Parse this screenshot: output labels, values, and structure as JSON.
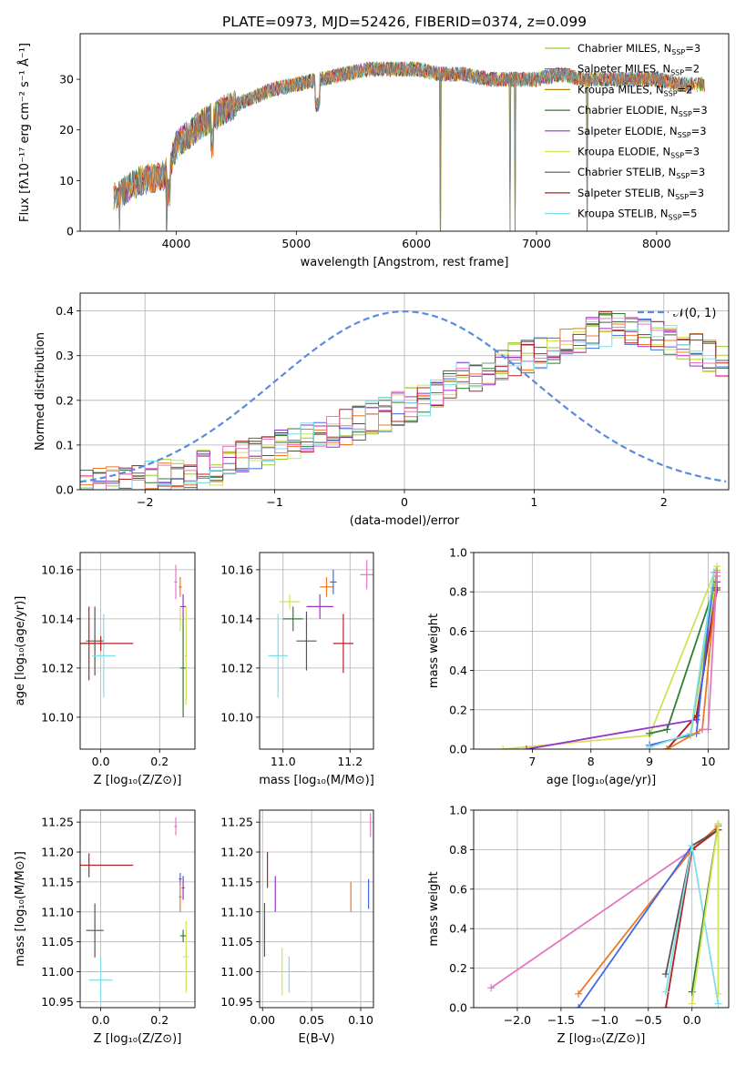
{
  "title": "PLATE=0973, MJD=52426, FIBERID=0374, z=0.099",
  "colors": {
    "Chabrier MILES": "#9acd32",
    "Salpeter MILES": "#4169e1",
    "Kroupa MILES": "#b8860b",
    "Chabrier ELODIE": "#2e7d32",
    "Salpeter ELODIE": "#9932cc",
    "Kroupa ELODIE": "#d4e157",
    "Chabrier STELIB": "#555555",
    "Salpeter STELIB": "#b22222",
    "Kroupa STELIB": "#7fdfe8",
    "extra_orange": "#ee7722",
    "extra_pink": "#e377c2",
    "gaussian": "#5b8bdb"
  },
  "chart_data": [
    {
      "id": "spectrum",
      "type": "line",
      "xlabel": "wavelength [Angstrom, rest frame]",
      "ylabel": "Flux [fλ10⁻¹⁷ erg cm⁻² s⁻¹ Å⁻¹]",
      "xlim": [
        3200,
        8600
      ],
      "ylim": [
        0,
        39
      ],
      "xticks": [
        "4000",
        "5000",
        "6000",
        "7000",
        "8000"
      ],
      "xtick_values": [
        4000,
        5000,
        6000,
        7000,
        8000
      ],
      "yticks": [
        "0",
        "10",
        "20",
        "30"
      ],
      "ytick_values": [
        0,
        10,
        20,
        30
      ],
      "legend_position": "top-right",
      "legend": [
        {
          "label": "Chabrier MILES, N",
          "sub": "SSP",
          "tail": "=3",
          "color": "#9acd32"
        },
        {
          "label": "Salpeter MILES, N",
          "sub": "SSP",
          "tail": "=2",
          "color": "#4169e1"
        },
        {
          "label": "Kroupa MILES, N",
          "sub": "SSP",
          "tail": "=2",
          "color": "#b8860b"
        },
        {
          "label": "Chabrier ELODIE, N",
          "sub": "SSP",
          "tail": "=3",
          "color": "#2e7d32"
        },
        {
          "label": "Salpeter ELODIE, N",
          "sub": "SSP",
          "tail": "=3",
          "color": "#9932cc"
        },
        {
          "label": "Kroupa ELODIE, N",
          "sub": "SSP",
          "tail": "=3",
          "color": "#d4e157"
        },
        {
          "label": "Chabrier STELIB, N",
          "sub": "SSP",
          "tail": "=3",
          "color": "#555555"
        },
        {
          "label": "Salpeter STELIB, N",
          "sub": "SSP",
          "tail": "=3",
          "color": "#b22222"
        },
        {
          "label": "Kroupa STELIB, N",
          "sub": "SSP",
          "tail": "=5",
          "color": "#7fdfe8"
        }
      ],
      "continuum": {
        "x": [
          3500,
          3700,
          3900,
          3950,
          4000,
          4200,
          4400,
          4600,
          4800,
          5000,
          5200,
          5400,
          5600,
          5800,
          6000,
          6200,
          6400,
          6600,
          6800,
          7000,
          7200,
          7400,
          7600,
          7800,
          8000,
          8200,
          8400
        ],
        "y": [
          7,
          10,
          11,
          13,
          17,
          21,
          24,
          26,
          28,
          29,
          30,
          31,
          32,
          32,
          32,
          31,
          31,
          30,
          30,
          30,
          31,
          30,
          30,
          30,
          30,
          29,
          29
        ]
      },
      "dropouts": [
        3530,
        3920,
        6200,
        6780,
        6820,
        7420
      ]
    },
    {
      "id": "residual-hist",
      "type": "line",
      "xlabel": "(data-model)/error",
      "ylabel": "Normed distribution",
      "xlim": [
        -2.5,
        2.5
      ],
      "ylim": [
        0,
        0.44
      ],
      "xticks": [
        "−2",
        "−1",
        "0",
        "1",
        "2"
      ],
      "xtick_values": [
        -2,
        -1,
        0,
        1,
        2
      ],
      "yticks": [
        "0.0",
        "0.1",
        "0.2",
        "0.3",
        "0.4"
      ],
      "ytick_values": [
        0,
        0.1,
        0.2,
        0.3,
        0.4
      ],
      "legend_label": "𝒩(0, 1)",
      "series_shape": {
        "bin_edges_start": -2.5,
        "bin_width": 0.1,
        "note_values": [
          0.01,
          0.01,
          0.015,
          0.02,
          0.02,
          0.025,
          0.03,
          0.03,
          0.04,
          0.05,
          0.05,
          0.06,
          0.07,
          0.08,
          0.08,
          0.1,
          0.1,
          0.11,
          0.12,
          0.13,
          0.14,
          0.15,
          0.16,
          0.17,
          0.18,
          0.19,
          0.2,
          0.22,
          0.23,
          0.25,
          0.26,
          0.27,
          0.28,
          0.29,
          0.3,
          0.31,
          0.32,
          0.33,
          0.34,
          0.35,
          0.36,
          0.36,
          0.36,
          0.35,
          0.34,
          0.33,
          0.32,
          0.31,
          0.3,
          0.29
        ]
      }
    },
    {
      "id": "age-vs-Z",
      "type": "scatter",
      "xlabel": "Z [log₁₀(Z/Z⊙)]",
      "ylabel": "age  [log₁₀(age/yr)]",
      "xlim": [
        -0.07,
        0.32
      ],
      "ylim": [
        10.087,
        10.167
      ],
      "xticks": [
        "0.0",
        "0.2"
      ],
      "xtick_values": [
        0,
        0.2
      ],
      "yticks": [
        "10.10",
        "10.12",
        "10.14",
        "10.16"
      ],
      "ytick_values": [
        10.1,
        10.12,
        10.14,
        10.16
      ],
      "points": [
        {
          "x": -0.04,
          "y": 10.13,
          "xerr": 0.02,
          "yerr": 0.015,
          "color": "#b22222"
        },
        {
          "x": -0.02,
          "y": 10.131,
          "xerr": 0.03,
          "yerr": 0.014,
          "color": "#555555"
        },
        {
          "x": 0.01,
          "y": 10.125,
          "xerr": 0.04,
          "yerr": 0.017,
          "color": "#7fdfe8"
        },
        {
          "x": 0.0,
          "y": 10.13,
          "xerr": 0.11,
          "yerr": 0.003,
          "color": "#b22222"
        },
        {
          "x": 0.255,
          "y": 10.155,
          "xerr": 0.005,
          "yerr": 0.007,
          "color": "#e377c2"
        },
        {
          "x": 0.27,
          "y": 10.153,
          "xerr": 0.005,
          "yerr": 0.004,
          "color": "#ee7722"
        },
        {
          "x": 0.28,
          "y": 10.145,
          "xerr": 0.01,
          "yerr": 0.005,
          "color": "#9932cc"
        },
        {
          "x": 0.27,
          "y": 10.14,
          "xerr": 0.01,
          "yerr": 0.005,
          "color": "#d4e157"
        },
        {
          "x": 0.28,
          "y": 10.12,
          "xerr": 0.01,
          "yerr": 0.02,
          "color": "#2e7d32"
        },
        {
          "x": 0.29,
          "y": 10.125,
          "xerr": 0.005,
          "yerr": 0.02,
          "color": "#d4e157"
        }
      ]
    },
    {
      "id": "age-vs-mass",
      "type": "scatter",
      "xlabel": "mass [log₁₀(M/M⊙)]",
      "ylabel": "",
      "xlim": [
        10.93,
        11.27
      ],
      "ylim": [
        10.087,
        10.167
      ],
      "xticks": [
        "11.0",
        "11.2"
      ],
      "xtick_values": [
        11.0,
        11.2
      ],
      "yticks": [
        "10.10",
        "10.12",
        "10.14",
        "10.16"
      ],
      "ytick_values": [
        10.1,
        10.12,
        10.14,
        10.16
      ],
      "points": [
        {
          "x": 10.985,
          "y": 10.125,
          "xerr": 0.03,
          "yerr": 0.017,
          "color": "#7fdfe8"
        },
        {
          "x": 11.02,
          "y": 10.147,
          "xerr": 0.03,
          "yerr": 0.003,
          "color": "#d4e157"
        },
        {
          "x": 11.03,
          "y": 10.14,
          "xerr": 0.03,
          "yerr": 0.005,
          "color": "#2e7d32"
        },
        {
          "x": 11.07,
          "y": 10.131,
          "xerr": 0.03,
          "yerr": 0.012,
          "color": "#555555"
        },
        {
          "x": 11.11,
          "y": 10.145,
          "xerr": 0.04,
          "yerr": 0.005,
          "color": "#9932cc"
        },
        {
          "x": 11.13,
          "y": 10.153,
          "xerr": 0.02,
          "yerr": 0.004,
          "color": "#ee7722"
        },
        {
          "x": 11.15,
          "y": 10.155,
          "xerr": 0.01,
          "yerr": 0.005,
          "color": "#4169e1"
        },
        {
          "x": 11.18,
          "y": 10.13,
          "xerr": 0.03,
          "yerr": 0.012,
          "color": "#b22222"
        },
        {
          "x": 11.25,
          "y": 10.158,
          "xerr": 0.02,
          "yerr": 0.006,
          "color": "#e377c2"
        }
      ]
    },
    {
      "id": "mass-weight-vs-age",
      "type": "line",
      "xlabel": "age  [log₁₀(age/yr)]",
      "ylabel": "mass weight",
      "xlim": [
        6.0,
        10.35
      ],
      "ylim": [
        0,
        1.0
      ],
      "xticks": [
        "7",
        "8",
        "9",
        "10"
      ],
      "xtick_values": [
        7,
        8,
        9,
        10
      ],
      "yticks": [
        "0.0",
        "0.2",
        "0.4",
        "0.6",
        "0.8",
        "1.0"
      ],
      "ytick_values": [
        0,
        0.2,
        0.4,
        0.6,
        0.8,
        1.0
      ],
      "series": [
        {
          "color": "#d4e157",
          "x": [
            6.5,
            9.0,
            10.15
          ],
          "y": [
            0.0,
            0.07,
            0.93
          ]
        },
        {
          "color": "#2e7d32",
          "x": [
            9.0,
            9.3,
            10.1
          ],
          "y": [
            0.08,
            0.1,
            0.82
          ]
        },
        {
          "color": "#9acd32",
          "x": [
            9.0,
            9.7,
            10.15
          ],
          "y": [
            0.02,
            0.07,
            0.91
          ]
        },
        {
          "color": "#9932cc",
          "x": [
            6.9,
            9.8,
            10.15
          ],
          "y": [
            0.0,
            0.15,
            0.85
          ]
        },
        {
          "color": "#555555",
          "x": [
            9.3,
            9.8,
            10.15
          ],
          "y": [
            0.0,
            0.17,
            0.82
          ]
        },
        {
          "color": "#b22222",
          "x": [
            9.3,
            9.8,
            10.15
          ],
          "y": [
            0.0,
            0.17,
            0.81
          ]
        },
        {
          "color": "#4169e1",
          "x": [
            9.0,
            9.8,
            10.1
          ],
          "y": [
            0.02,
            0.08,
            0.9
          ]
        },
        {
          "color": "#ee7722",
          "x": [
            9.3,
            9.9,
            10.15
          ],
          "y": [
            0.0,
            0.1,
            0.88
          ]
        },
        {
          "color": "#7fdfe8",
          "x": [
            9.0,
            9.7,
            10.1
          ],
          "y": [
            0.01,
            0.08,
            0.9
          ]
        },
        {
          "color": "#e377c2",
          "x": [
            9.9,
            10.0,
            10.15
          ],
          "y": [
            0.1,
            0.1,
            0.9
          ]
        }
      ]
    },
    {
      "id": "mass-vs-Z",
      "type": "scatter",
      "xlabel": "Z [log₁₀(Z/Z⊙)]",
      "ylabel": "mass [log₁₀(M/M⊙)]",
      "xlim": [
        -0.07,
        0.32
      ],
      "ylim": [
        10.94,
        11.27
      ],
      "xticks": [
        "0.0",
        "0.2"
      ],
      "xtick_values": [
        0,
        0.2
      ],
      "yticks": [
        "10.95",
        "11.00",
        "11.05",
        "11.10",
        "11.15",
        "11.20",
        "11.25"
      ],
      "ytick_values": [
        10.95,
        11.0,
        11.05,
        11.1,
        11.15,
        11.2,
        11.25
      ],
      "points": [
        {
          "x": -0.04,
          "y": 11.178,
          "xerr": 0.15,
          "yerr": 0.02,
          "color": "#b22222"
        },
        {
          "x": -0.02,
          "y": 11.069,
          "xerr": 0.03,
          "yerr": 0.045,
          "color": "#555555"
        },
        {
          "x": 0.0,
          "y": 10.986,
          "xerr": 0.04,
          "yerr": 0.038,
          "color": "#7fdfe8"
        },
        {
          "x": 0.255,
          "y": 11.243,
          "xerr": 0.005,
          "yerr": 0.015,
          "color": "#e377c2"
        },
        {
          "x": 0.27,
          "y": 11.155,
          "xerr": 0.005,
          "yerr": 0.01,
          "color": "#4169e1"
        },
        {
          "x": 0.27,
          "y": 11.125,
          "xerr": 0.005,
          "yerr": 0.025,
          "color": "#ee7722"
        },
        {
          "x": 0.28,
          "y": 11.14,
          "xerr": 0.005,
          "yerr": 0.02,
          "color": "#9932cc"
        },
        {
          "x": 0.28,
          "y": 11.06,
          "xerr": 0.01,
          "yerr": 0.01,
          "color": "#2e7d32"
        },
        {
          "x": 0.29,
          "y": 11.025,
          "xerr": 0.01,
          "yerr": 0.06,
          "color": "#d4e157"
        }
      ]
    },
    {
      "id": "mass-vs-ebv",
      "type": "scatter",
      "xlabel": "E(B-V)",
      "ylabel": "",
      "xlim": [
        -0.003,
        0.113
      ],
      "ylim": [
        10.94,
        11.27
      ],
      "xticks": [
        "0.00",
        "0.05",
        "0.10"
      ],
      "xtick_values": [
        0,
        0.05,
        0.1
      ],
      "yticks": [
        "10.95",
        "11.00",
        "11.05",
        "11.10",
        "11.15",
        "11.20",
        "11.25"
      ],
      "ytick_values": [
        10.95,
        11.0,
        11.05,
        11.1,
        11.15,
        11.2,
        11.25
      ],
      "points": [
        {
          "x": 0.002,
          "y": 11.07,
          "xerr": 0,
          "yerr": 0.045,
          "color": "#555555"
        },
        {
          "x": 0.005,
          "y": 11.17,
          "xerr": 0,
          "yerr": 0.03,
          "color": "#b22222"
        },
        {
          "x": 0.013,
          "y": 11.13,
          "xerr": 0,
          "yerr": 0.03,
          "color": "#9932cc"
        },
        {
          "x": 0.02,
          "y": 11.0,
          "xerr": 0,
          "yerr": 0.04,
          "color": "#d4e157"
        },
        {
          "x": 0.027,
          "y": 10.995,
          "xerr": 0,
          "yerr": 0.03,
          "color": "#7fdfe8"
        },
        {
          "x": 0.09,
          "y": 11.125,
          "xerr": 0,
          "yerr": 0.025,
          "color": "#ee7722"
        },
        {
          "x": 0.108,
          "y": 11.13,
          "xerr": 0,
          "yerr": 0.025,
          "color": "#4169e1"
        },
        {
          "x": 0.11,
          "y": 11.245,
          "xerr": 0,
          "yerr": 0.02,
          "color": "#e377c2"
        }
      ]
    },
    {
      "id": "mass-weight-vs-Z",
      "type": "line",
      "xlabel": "Z [log₁₀(Z/Z⊙)]",
      "ylabel": "mass weight",
      "xlim": [
        -2.5,
        0.42
      ],
      "ylim": [
        0,
        1.0
      ],
      "xticks": [
        "−2.0",
        "−1.5",
        "−1.0",
        "−0.5",
        "0.0"
      ],
      "xtick_values": [
        -2.0,
        -1.5,
        -1.0,
        -0.5,
        0.0
      ],
      "yticks": [
        "0.0",
        "0.2",
        "0.4",
        "0.6",
        "0.8",
        "1.0"
      ],
      "ytick_values": [
        0,
        0.2,
        0.4,
        0.6,
        0.8,
        1.0
      ],
      "series": [
        {
          "color": "#e377c2",
          "x": [
            -2.3,
            0.0,
            0.3
          ],
          "y": [
            0.1,
            0.8,
            0.9
          ]
        },
        {
          "color": "#ee7722",
          "x": [
            -1.3,
            0.0,
            0.3
          ],
          "y": [
            0.07,
            0.8,
            0.92
          ]
        },
        {
          "color": "#4169e1",
          "x": [
            -1.3,
            0.0
          ],
          "y": [
            0.0,
            0.82
          ]
        },
        {
          "color": "#b22222",
          "x": [
            -0.3,
            0.0,
            0.3
          ],
          "y": [
            0.0,
            0.8,
            0.9
          ]
        },
        {
          "color": "#555555",
          "x": [
            -0.3,
            0.0,
            0.3
          ],
          "y": [
            0.17,
            0.82,
            0.9
          ]
        },
        {
          "color": "#7fdfe8",
          "x": [
            -0.3,
            0.0,
            0.3
          ],
          "y": [
            0.08,
            0.82,
            0.02
          ]
        },
        {
          "color": "#2e7d32",
          "x": [
            0.0,
            0.3
          ],
          "y": [
            0.08,
            0.93
          ]
        },
        {
          "color": "#d4e157",
          "x": [
            0.0,
            0.3,
            0.3
          ],
          "y": [
            0.02,
            0.93,
            0.07
          ]
        }
      ]
    }
  ]
}
